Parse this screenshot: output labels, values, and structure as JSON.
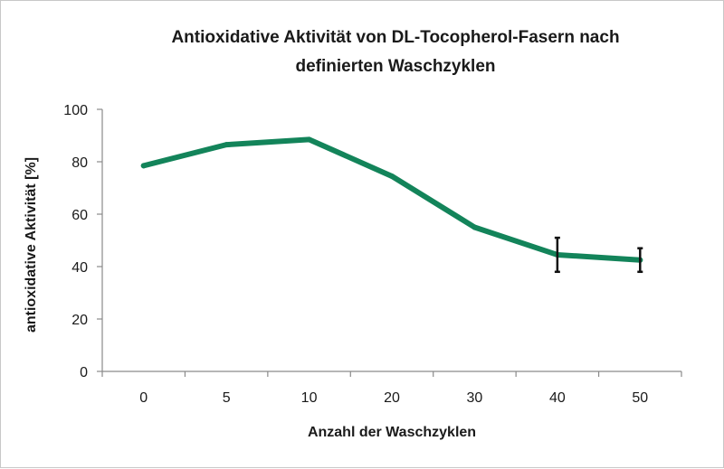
{
  "chart_data": {
    "type": "line",
    "title_lines": [
      "Antioxidative Aktivität von DL-Tocopherol-Fasern nach",
      "definierten Waschzyklen"
    ],
    "xlabel": "Anzahl der Waschzyklen",
    "ylabel": "antioxidative Aktivität   [%]",
    "categories": [
      "0",
      "5",
      "10",
      "20",
      "30",
      "40",
      "50"
    ],
    "series": [
      {
        "values": [
          78.5,
          86.5,
          88.5,
          74.5,
          55,
          44.5,
          42.5
        ],
        "error_bars": [
          null,
          null,
          null,
          null,
          null,
          6.5,
          4.5
        ],
        "color": "#13845a"
      }
    ],
    "ylim": [
      0,
      100
    ],
    "yticks": [
      0,
      20,
      40,
      60,
      80,
      100
    ],
    "grid": false,
    "legend": "none"
  }
}
